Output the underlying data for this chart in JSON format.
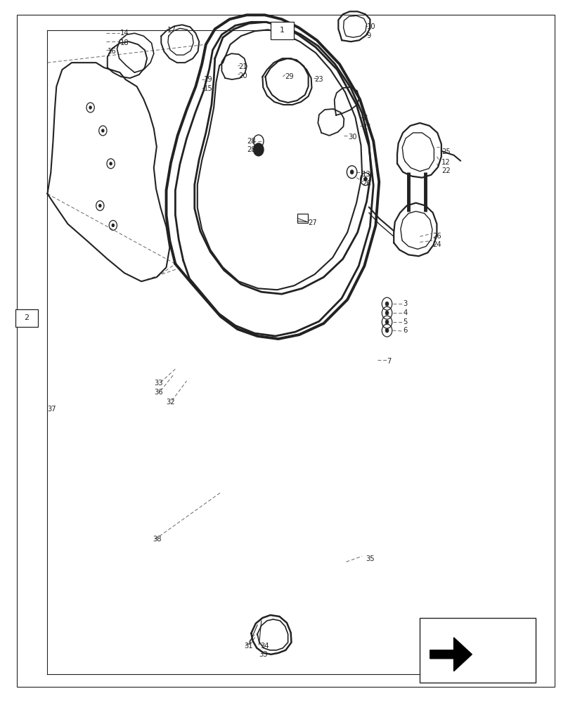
{
  "bg_color": "#ffffff",
  "line_color": "#222222",
  "dash_color": "#666666",
  "fig_width": 8.08,
  "fig_height": 10.0
}
